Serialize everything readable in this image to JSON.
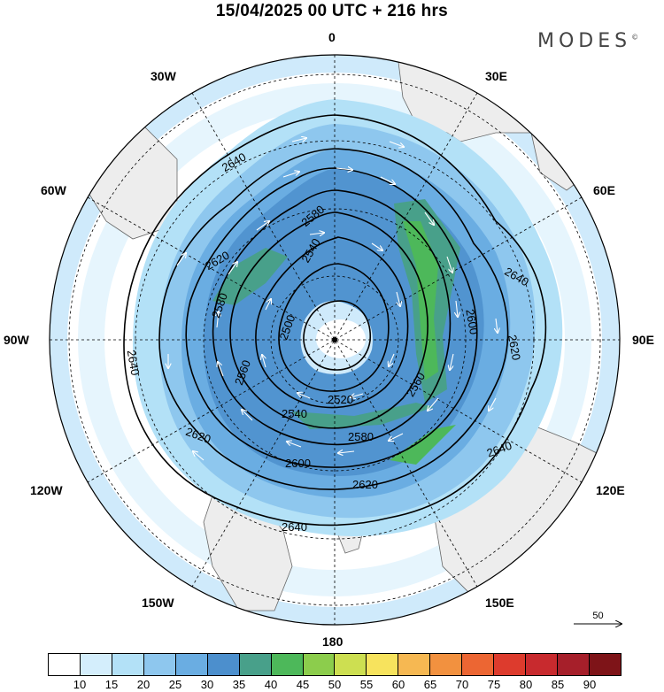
{
  "title": "15/04/2025  00 UTC  + 216 hrs",
  "brand": {
    "text": "MODES",
    "mark": "©"
  },
  "longitude_labels": [
    "0",
    "30E",
    "60E",
    "90E",
    "120E",
    "150E",
    "180",
    "150W",
    "120W",
    "90W",
    "60W",
    "30W"
  ],
  "contour_labels": [
    "2500",
    "2520",
    "2540",
    "2560",
    "2580",
    "2600",
    "2620",
    "2640"
  ],
  "reference_vector": {
    "value": "50"
  },
  "colorbar": {
    "ticks": [
      "10",
      "15",
      "20",
      "25",
      "30",
      "35",
      "40",
      "45",
      "50",
      "55",
      "60",
      "65",
      "70",
      "75",
      "80",
      "85",
      "90"
    ],
    "colors": [
      "#ffffff",
      "#d4eefc",
      "#b3e1f7",
      "#8ec7ee",
      "#6aade2",
      "#4c8fcd",
      "#48a08a",
      "#4db85a",
      "#8ccd4c",
      "#cddf51",
      "#f7e35d",
      "#f6b852",
      "#f2913f",
      "#ec6633",
      "#dd3b2d",
      "#c82a2e",
      "#a61f2a",
      "#7e1418"
    ]
  },
  "map_colors": {
    "land": "#ededed",
    "coast": "#666666",
    "contour": "#000000",
    "graticule": "#000000",
    "vector": "#ffffff"
  }
}
